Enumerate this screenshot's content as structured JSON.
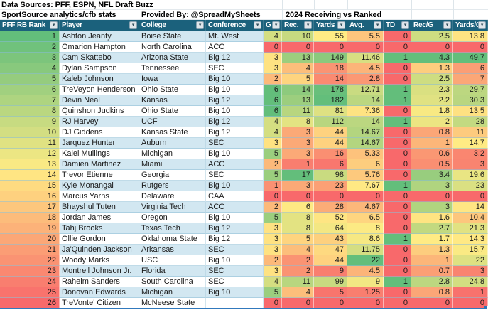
{
  "titles": {
    "data_sources": "Data Sources: PFF, ESPN, NFL Draft Buzz",
    "sportsource": "SportSource analytics/cfb stats",
    "provided_by": "Provided By: @SpreadMySheets",
    "receiving_title": "2024 Receiving vs Ranked"
  },
  "colors": {
    "header_bg": "#1B617C",
    "band_blue": "#D2E7F1",
    "band_white": "#FFFFFF",
    "scale_green": "#63BE7B",
    "scale_yellow": "#FFEB84",
    "scale_red": "#F8696B",
    "selection_blue": "#2E75B6"
  },
  "columns": [
    {
      "key": "rank",
      "label": "PFF RB Rank"
    },
    {
      "key": "player",
      "label": "Player"
    },
    {
      "key": "college",
      "label": "College"
    },
    {
      "key": "conference",
      "label": "Conference"
    },
    {
      "key": "g",
      "label": "G"
    },
    {
      "key": "rec",
      "label": "Rec."
    },
    {
      "key": "yards",
      "label": "Yards"
    },
    {
      "key": "avg",
      "label": "Avg."
    },
    {
      "key": "td",
      "label": "TD"
    },
    {
      "key": "rec-per-g",
      "label": "Rec/G"
    },
    {
      "key": "yards-per-g",
      "label": "Yards/G"
    }
  ],
  "chart_data": {
    "type": "table",
    "title": "2024 Receiving vs Ranked",
    "columns": [
      "PFF RB Rank",
      "Player",
      "College",
      "Conference",
      "G",
      "Rec.",
      "Yards",
      "Avg.",
      "TD",
      "Rec/G",
      "Yards/G"
    ],
    "rows_note": "same values as rows[] below"
  },
  "rows": [
    {
      "rank": "1",
      "rankColor": "#63BE7B",
      "player": "Ashton Jeanty",
      "college": "Boise State",
      "conference": "Mt. West",
      "band": true,
      "stats": [
        "4",
        "10",
        "55",
        "5.5",
        "0",
        "2.5",
        "13.8"
      ],
      "statColors": [
        "#D4DE81",
        "#C7DA80",
        "#FFEB84",
        "#FDC57D",
        "#F8696B",
        "#CEDD81",
        "#FEE482"
      ]
    },
    {
      "rank": "2",
      "rankColor": "#70C27C",
      "player": "Omarion Hampton",
      "college": "North Carolina",
      "conference": "ACC",
      "band": false,
      "stats": [
        "0",
        "0",
        "0",
        "0",
        "0",
        "0",
        "0"
      ],
      "statColors": [
        "#F8696B",
        "#F8696B",
        "#F8696B",
        "#F8696B",
        "#F8696B",
        "#F8696B",
        "#F8696B"
      ]
    },
    {
      "rank": "3",
      "rankColor": "#7CC57C",
      "player": "Cam Skattebo",
      "college": "Arizona State",
      "conference": "Big 12",
      "band": true,
      "stats": [
        "3",
        "13",
        "149",
        "11.46",
        "1",
        "4.3",
        "49.7"
      ],
      "statColors": [
        "#FEE282",
        "#9CCE7E",
        "#8BC97D",
        "#D7DF82",
        "#63BE7B",
        "#63BE7B",
        "#63BE7B"
      ]
    },
    {
      "rank": "4",
      "rankColor": "#88C97D",
      "player": "Dylan Sampson",
      "college": "Tennessee",
      "conference": "SEC",
      "band": false,
      "stats": [
        "3",
        "4",
        "18",
        "4.5",
        "0",
        "1.3",
        "6"
      ],
      "statColors": [
        "#FEE282",
        "#FCBE7B",
        "#FA9473",
        "#FCB479",
        "#F8696B",
        "#FDCD7E",
        "#FB9E75"
      ]
    },
    {
      "rank": "5",
      "rankColor": "#95CC7E",
      "player": "Kaleb Johnson",
      "college": "Iowa",
      "conference": "Big 10",
      "band": true,
      "stats": [
        "2",
        "5",
        "14",
        "2.8",
        "0",
        "2.5",
        "7"
      ],
      "statColors": [
        "#FCB97A",
        "#FED47F",
        "#FA8A71",
        "#FB9874",
        "#F8696B",
        "#CEDD81",
        "#FBA777"
      ]
    },
    {
      "rank": "6",
      "rankColor": "#A1D07F",
      "player": "TreVeyon Henderson",
      "college": "Ohio State",
      "conference": "Big 10",
      "band": false,
      "stats": [
        "6",
        "14",
        "178",
        "12.71",
        "1",
        "2.3",
        "29.7"
      ],
      "statColors": [
        "#63BE7B",
        "#8DCA7D",
        "#68BF7B",
        "#C9DB81",
        "#63BE7B",
        "#DAE081",
        "#BCD780"
      ]
    },
    {
      "rank": "7",
      "rankColor": "#AED480",
      "player": "Devin Neal",
      "college": "Kansas",
      "conference": "Big 12",
      "band": true,
      "stats": [
        "6",
        "13",
        "182",
        "14",
        "1",
        "2.2",
        "30.3"
      ],
      "statColors": [
        "#63BE7B",
        "#9CCE7E",
        "#63BE7B",
        "#BBD780",
        "#63BE7B",
        "#E0E282",
        "#B9D680"
      ]
    },
    {
      "rank": "8",
      "rankColor": "#BAD780",
      "player": "Quinshon Judkins",
      "college": "Ohio State",
      "conference": "Big 10",
      "band": false,
      "stats": [
        "6",
        "11",
        "81",
        "7.36",
        "0",
        "1.8",
        "13.5"
      ],
      "statColors": [
        "#63BE7B",
        "#B8D67F",
        "#DEE182",
        "#FEE382",
        "#F8696B",
        "#F8E983",
        "#FEE182"
      ]
    },
    {
      "rank": "9",
      "rankColor": "#C7DB81",
      "player": "RJ Harvey",
      "college": "UCF",
      "conference": "Big 12",
      "band": true,
      "stats": [
        "4",
        "8",
        "112",
        "14",
        "1",
        "2",
        "28"
      ],
      "statColors": [
        "#D4DE81",
        "#E3E382",
        "#B8D67F",
        "#BBD780",
        "#63BE7B",
        "#ECE582",
        "#C3DA81"
      ]
    },
    {
      "rank": "10",
      "rankColor": "#D3DE82",
      "player": "DJ Giddens",
      "college": "Kansas State",
      "conference": "Big 12",
      "band": false,
      "stats": [
        "4",
        "3",
        "44",
        "14.67",
        "0",
        "0.8",
        "11"
      ],
      "statColors": [
        "#D4DE81",
        "#FBA977",
        "#FED27F",
        "#B3D57F",
        "#F8696B",
        "#FBA677",
        "#FDCB7E"
      ]
    },
    {
      "rank": "11",
      "rankColor": "#E0E282",
      "player": "Jarquez Hunter",
      "college": "Auburn",
      "conference": "SEC",
      "band": true,
      "stats": [
        "3",
        "3",
        "44",
        "14.67",
        "0",
        "1",
        "14.7"
      ],
      "statColors": [
        "#FEE282",
        "#FBA977",
        "#FED27F",
        "#B3D57F",
        "#F8696B",
        "#FCB679",
        "#FFEB84"
      ]
    },
    {
      "rank": "12",
      "rankColor": "#ECE683",
      "player": "Kalel Mullings",
      "college": "Michigan",
      "conference": "Big 10",
      "band": false,
      "stats": [
        "5",
        "3",
        "16",
        "5.33",
        "0",
        "0.6",
        "3.2"
      ],
      "statColors": [
        "#9BCE7E",
        "#FBA977",
        "#FA8F72",
        "#FDC27C",
        "#F8696B",
        "#FA9773",
        "#FA8670"
      ]
    },
    {
      "rank": "13",
      "rankColor": "#F9E984",
      "player": "Damien Martinez",
      "college": "Miami",
      "conference": "ACC",
      "band": true,
      "stats": [
        "2",
        "1",
        "6",
        "6",
        "0",
        "0.5",
        "3"
      ],
      "statColors": [
        "#FCB97A",
        "#F97E6F",
        "#F9776E",
        "#FDCD7E",
        "#F8696B",
        "#FA8F72",
        "#F98470"
      ]
    },
    {
      "rank": "14",
      "rankColor": "#FFE583",
      "player": "Trevor Etienne",
      "college": "Georgia",
      "conference": "SEC",
      "band": false,
      "stats": [
        "5",
        "17",
        "98",
        "5.76",
        "0",
        "3.4",
        "19.6"
      ],
      "statColors": [
        "#9BCE7E",
        "#63BE7B",
        "#C9DB80",
        "#FDC97D",
        "#F8696B",
        "#98CD7E",
        "#E9E583"
      ]
    },
    {
      "rank": "15",
      "rankColor": "#FEDB81",
      "player": "Kyle Monangai",
      "college": "Rutgers",
      "conference": "Big 10",
      "band": true,
      "stats": [
        "1",
        "3",
        "23",
        "7.67",
        "1",
        "3",
        "23"
      ],
      "statColors": [
        "#FA9173",
        "#FBA977",
        "#FBA075",
        "#FFE984",
        "#63BE7B",
        "#B0D47F",
        "#DAE082"
      ]
    },
    {
      "rank": "16",
      "rankColor": "#FED17F",
      "player": "Marcus Yarns",
      "college": "Delaware",
      "conference": "CAA",
      "band": false,
      "stats": [
        "0",
        "0",
        "0",
        "0",
        "0",
        "0",
        "0"
      ],
      "statColors": [
        "#F8696B",
        "#F8696B",
        "#F8696B",
        "#F8696B",
        "#F8696B",
        "#F8696B",
        "#F8696B"
      ]
    },
    {
      "rank": "17",
      "rankColor": "#FDC77D",
      "player": "Bhayshul Tuten",
      "college": "Virginia Tech",
      "conference": "ACC",
      "band": true,
      "stats": [
        "2",
        "6",
        "28",
        "4.67",
        "0",
        "3",
        "14"
      ],
      "statColors": [
        "#FCB97A",
        "#FEE983",
        "#FBAC77",
        "#FCB77A",
        "#F8696B",
        "#B0D47F",
        "#FFE683"
      ]
    },
    {
      "rank": "18",
      "rankColor": "#FCBC7B",
      "player": "Jordan James",
      "college": "Oregon",
      "conference": "Big 10",
      "band": false,
      "stats": [
        "5",
        "8",
        "52",
        "6.5",
        "0",
        "1.6",
        "10.4"
      ],
      "statColors": [
        "#9BCE7E",
        "#E3E382",
        "#FEE583",
        "#FED580",
        "#F8696B",
        "#FEE482",
        "#FDC67D"
      ]
    },
    {
      "rank": "19",
      "rankColor": "#FCB279",
      "player": "Tahj Brooks",
      "college": "Texas Tech",
      "conference": "Big 12",
      "band": true,
      "stats": [
        "3",
        "8",
        "64",
        "8",
        "0",
        "2.7",
        "21.3"
      ],
      "statColors": [
        "#FEE282",
        "#E3E382",
        "#F3E783",
        "#FCEA84",
        "#F8696B",
        "#C2D980",
        "#E1E282"
      ]
    },
    {
      "rank": "20",
      "rankColor": "#FBA777",
      "player": "Ollie Gordon",
      "college": "Oklahoma State",
      "conference": "Big 12",
      "band": false,
      "stats": [
        "3",
        "5",
        "43",
        "8.6",
        "1",
        "1.7",
        "14.3"
      ],
      "statColors": [
        "#FEE282",
        "#FED47F",
        "#FDD07E",
        "#F6E883",
        "#63BE7B",
        "#FFEB84",
        "#FFE984"
      ]
    },
    {
      "rank": "21",
      "rankColor": "#FB9D75",
      "player": "Ja'Quinden Jackson",
      "college": "Arkansas",
      "conference": "SEC",
      "band": true,
      "stats": [
        "3",
        "4",
        "47",
        "11.75",
        "0",
        "1.3",
        "15.7"
      ],
      "statColors": [
        "#FEE282",
        "#FCBE7B",
        "#FED980",
        "#D4DE82",
        "#F8696B",
        "#FDCD7E",
        "#FAEA84"
      ]
    },
    {
      "rank": "22",
      "rankColor": "#FA9373",
      "player": "Woody Marks",
      "college": "USC",
      "conference": "Big 10",
      "band": false,
      "stats": [
        "2",
        "2",
        "44",
        "22",
        "0",
        "1",
        "22"
      ],
      "statColors": [
        "#FCB97A",
        "#FA9373",
        "#FED27F",
        "#63BE7B",
        "#F8696B",
        "#FCB679",
        "#DEE182"
      ]
    },
    {
      "rank": "23",
      "rankColor": "#FA8871",
      "player": "Montrell Johnson Jr.",
      "college": "Florida",
      "conference": "SEC",
      "band": true,
      "stats": [
        "3",
        "2",
        "9",
        "4.5",
        "0",
        "0.7",
        "3"
      ],
      "statColors": [
        "#FEE282",
        "#FA9373",
        "#F97E6F",
        "#FCB479",
        "#F8696B",
        "#FB9F75",
        "#F98470"
      ]
    },
    {
      "rank": "24",
      "rankColor": "#F97E6F",
      "player": "Raheim Sanders",
      "college": "South Carolina",
      "conference": "SEC",
      "band": false,
      "stats": [
        "4",
        "11",
        "99",
        "9",
        "1",
        "2.8",
        "24.8"
      ],
      "statColors": [
        "#D4DE81",
        "#B8D67F",
        "#C8DB80",
        "#F2E783",
        "#63BE7B",
        "#BCD780",
        "#D2DE81"
      ]
    },
    {
      "rank": "25",
      "rankColor": "#F9736D",
      "player": "Donovan Edwards",
      "college": "Michigan",
      "conference": "Big 10",
      "band": true,
      "stats": [
        "5",
        "4",
        "5",
        "1.25",
        "0",
        "0.8",
        "1"
      ],
      "statColors": [
        "#9BCE7E",
        "#FCBE7B",
        "#F8756D",
        "#F97E6F",
        "#F8696B",
        "#FBA677",
        "#F8726D"
      ]
    },
    {
      "rank": "26",
      "rankColor": "#F8696B",
      "player": "TreVonte' Citizen",
      "college": "McNeese State",
      "conference": "",
      "band": false,
      "stats": [
        "0",
        "0",
        "0",
        "0",
        "0",
        "0",
        "0"
      ],
      "statColors": [
        "#F8696B",
        "#F8696B",
        "#F8696B",
        "#F8696B",
        "#F8696B",
        "#F8696B",
        "#F8696B"
      ]
    }
  ]
}
